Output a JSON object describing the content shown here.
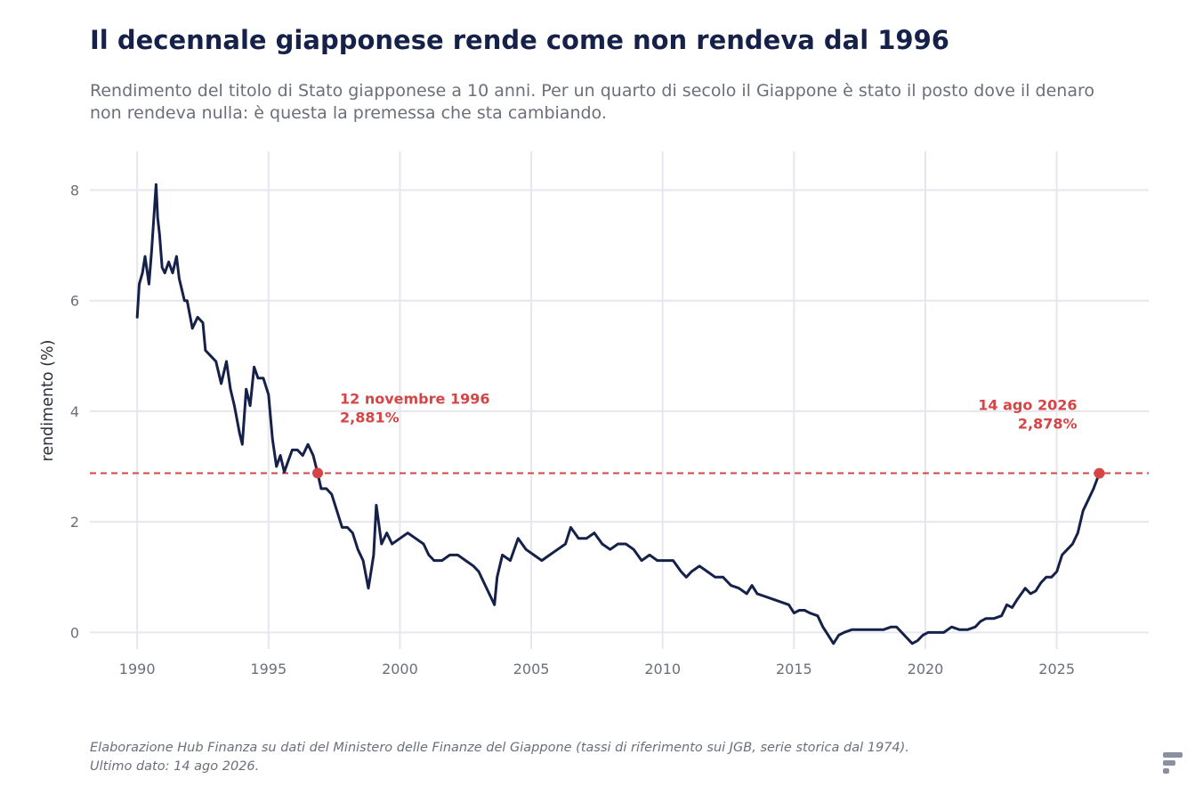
{
  "chart_data": {
    "type": "line",
    "title": "Il decennale giapponese rende come non rendeva dal 1996",
    "subtitle": "Rendimento del titolo di Stato giapponese a 10 anni. Per un quarto di secolo il Giappone è stato il posto dove il denaro non rendeva nulla: è questa la premessa che sta cambiando.",
    "source": "Elaborazione Hub Finanza su dati del Ministero delle Finanze del Giappone (tassi di riferimento sui JGB, serie storica dal 1974). Ultimo dato: 14 ago 2026.",
    "xlabel": "",
    "ylabel": "rendimento (%)",
    "xlim": [
      1988.2,
      2028.5
    ],
    "ylim": [
      -0.3,
      8.7
    ],
    "xticks": [
      "1990",
      "1995",
      "2000",
      "2005",
      "2010",
      "2015",
      "2020",
      "2025"
    ],
    "yticks": [
      "0",
      "2",
      "4",
      "6",
      "8"
    ],
    "grid": true,
    "colors": {
      "line": "#16214a",
      "reference": "#d64545",
      "grid": "#e6e6ef"
    },
    "reference_line": {
      "y": 2.88,
      "style": "dashed"
    },
    "annotations": [
      {
        "line1": "12 novembre 1996",
        "line2": "2,881%",
        "x": 1996.87,
        "y": 2.881
      },
      {
        "line1": "14 ago 2026",
        "line2": "2,878%",
        "x": 2026.62,
        "y": 2.878
      }
    ],
    "series": [
      {
        "x": [
          1990.0,
          1990.08,
          1990.2,
          1990.3,
          1990.45,
          1990.55,
          1990.65,
          1990.72,
          1990.78,
          1990.85,
          1990.95,
          1991.05,
          1991.2,
          1991.35,
          1991.5,
          1991.6,
          1991.8,
          1991.9,
          1992.1,
          1992.3,
          1992.5,
          1992.6,
          1992.8,
          1993.0,
          1993.2,
          1993.4,
          1993.55,
          1993.7,
          1993.9,
          1994.0,
          1994.15,
          1994.3,
          1994.45,
          1994.6,
          1994.8,
          1995.0,
          1995.15,
          1995.3,
          1995.45,
          1995.6,
          1995.75,
          1995.9,
          1996.1,
          1996.3,
          1996.5,
          1996.7,
          1996.87,
          1997.0,
          1997.2,
          1997.4,
          1997.6,
          1997.8,
          1998.0,
          1998.2,
          1998.4,
          1998.6,
          1998.8,
          1998.9,
          1999.0,
          1999.1,
          1999.3,
          1999.5,
          1999.7,
          2000.0,
          2000.3,
          2000.6,
          2000.9,
          2001.1,
          2001.3,
          2001.6,
          2001.9,
          2002.2,
          2002.5,
          2002.8,
          2003.0,
          2003.2,
          2003.4,
          2003.5,
          2003.6,
          2003.7,
          2003.9,
          2004.2,
          2004.5,
          2004.8,
          2005.1,
          2005.4,
          2005.7,
          2006.0,
          2006.3,
          2006.5,
          2006.8,
          2007.1,
          2007.4,
          2007.7,
          2008.0,
          2008.3,
          2008.6,
          2008.9,
          2009.2,
          2009.5,
          2009.8,
          2010.1,
          2010.4,
          2010.7,
          2010.9,
          2011.1,
          2011.4,
          2011.7,
          2012.0,
          2012.3,
          2012.6,
          2012.9,
          2013.2,
          2013.4,
          2013.6,
          2013.9,
          2014.2,
          2014.5,
          2014.8,
          2015.0,
          2015.2,
          2015.4,
          2015.6,
          2015.9,
          2016.1,
          2016.3,
          2016.5,
          2016.7,
          2016.9,
          2017.2,
          2017.5,
          2017.8,
          2018.1,
          2018.4,
          2018.7,
          2018.9,
          2019.1,
          2019.3,
          2019.5,
          2019.7,
          2019.9,
          2020.1,
          2020.4,
          2020.7,
          2021.0,
          2021.3,
          2021.6,
          2021.9,
          2022.1,
          2022.3,
          2022.6,
          2022.9,
          2023.1,
          2023.3,
          2023.5,
          2023.8,
          2024.0,
          2024.2,
          2024.4,
          2024.6,
          2024.8,
          2025.0,
          2025.2,
          2025.4,
          2025.6,
          2025.8,
          2026.0,
          2026.2,
          2026.4,
          2026.62
        ],
        "values": [
          5.7,
          6.3,
          6.5,
          6.8,
          6.3,
          6.9,
          7.6,
          8.1,
          7.5,
          7.2,
          6.6,
          6.5,
          6.7,
          6.5,
          6.8,
          6.4,
          6.0,
          6.0,
          5.5,
          5.7,
          5.6,
          5.1,
          5.0,
          4.9,
          4.5,
          4.9,
          4.4,
          4.1,
          3.6,
          3.4,
          4.4,
          4.1,
          4.8,
          4.6,
          4.6,
          4.3,
          3.5,
          3.0,
          3.2,
          2.9,
          3.1,
          3.3,
          3.3,
          3.2,
          3.4,
          3.2,
          2.881,
          2.6,
          2.6,
          2.5,
          2.2,
          1.9,
          1.9,
          1.8,
          1.5,
          1.3,
          0.8,
          1.1,
          1.4,
          2.3,
          1.6,
          1.8,
          1.6,
          1.7,
          1.8,
          1.7,
          1.6,
          1.4,
          1.3,
          1.3,
          1.4,
          1.4,
          1.3,
          1.2,
          1.1,
          0.9,
          0.7,
          0.6,
          0.5,
          1.0,
          1.4,
          1.3,
          1.7,
          1.5,
          1.4,
          1.3,
          1.4,
          1.5,
          1.6,
          1.9,
          1.7,
          1.7,
          1.8,
          1.6,
          1.5,
          1.6,
          1.6,
          1.5,
          1.3,
          1.4,
          1.3,
          1.3,
          1.3,
          1.1,
          1.0,
          1.1,
          1.2,
          1.1,
          1.0,
          1.0,
          0.85,
          0.8,
          0.7,
          0.85,
          0.7,
          0.65,
          0.6,
          0.55,
          0.5,
          0.35,
          0.4,
          0.4,
          0.35,
          0.3,
          0.1,
          -0.05,
          -0.2,
          -0.05,
          0.0,
          0.05,
          0.05,
          0.05,
          0.05,
          0.05,
          0.1,
          0.1,
          0.0,
          -0.1,
          -0.2,
          -0.15,
          -0.05,
          0.0,
          0.0,
          0.0,
          0.1,
          0.05,
          0.05,
          0.1,
          0.2,
          0.25,
          0.25,
          0.3,
          0.5,
          0.45,
          0.6,
          0.8,
          0.7,
          0.75,
          0.9,
          1.0,
          1.0,
          1.1,
          1.4,
          1.5,
          1.6,
          1.8,
          2.2,
          2.4,
          2.6,
          2.878
        ]
      }
    ]
  }
}
